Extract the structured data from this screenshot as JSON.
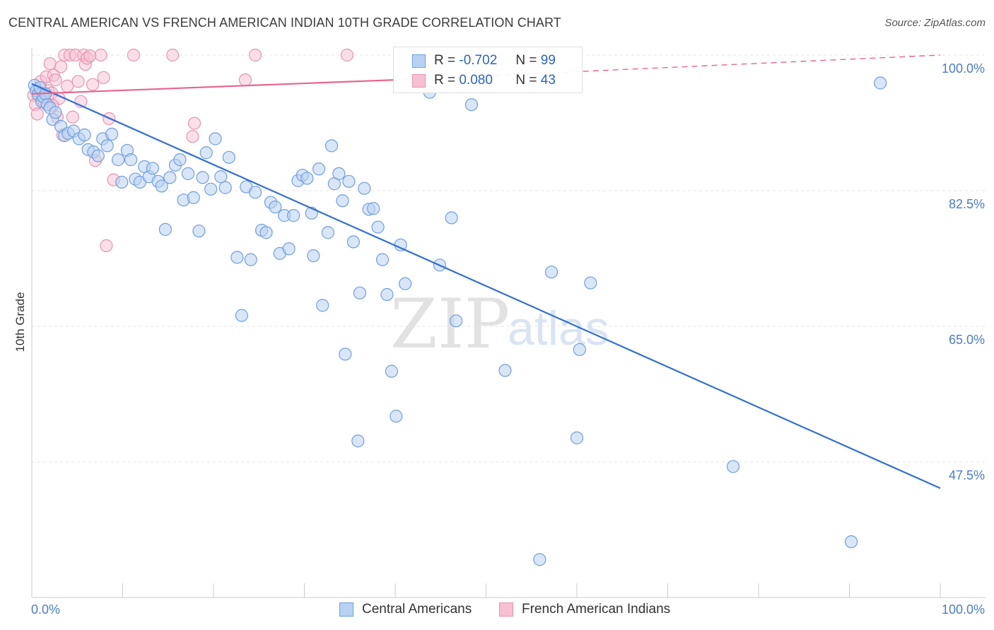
{
  "title": "CENTRAL AMERICAN VS FRENCH AMERICAN INDIAN 10TH GRADE CORRELATION CHART",
  "source": "Source: ZipAtlas.com",
  "watermark": {
    "zip": "ZIP",
    "atlas": "atlas"
  },
  "legend": {
    "rows": [
      {
        "r_label": "R =",
        "r_value": "-0.702",
        "n_label": "N =",
        "n_value": "99"
      },
      {
        "r_label": "R =",
        "r_value": "0.080",
        "n_label": "N =",
        "n_value": "43"
      }
    ]
  },
  "colors": {
    "blue_fill": "#b9d2f3",
    "blue_stroke": "#6f9fe0",
    "blue_line": "#2f6fd6",
    "pink_fill": "#f6c0d2",
    "pink_stroke": "#e893b1",
    "pink_line": "#e5668e",
    "grid": "#e6e6e6",
    "tick_text": "#4a7cc9"
  },
  "chart_data": {
    "type": "scatter",
    "title": "CENTRAL AMERICAN VS FRENCH AMERICAN INDIAN 10TH GRADE CORRELATION CHART",
    "xlabel": "",
    "ylabel": "10th Grade",
    "xlim": [
      0,
      100
    ],
    "ylim": [
      30,
      102
    ],
    "x_tick_labels": [
      "0.0%",
      "100.0%"
    ],
    "y_ticks": [
      47.5,
      65.0,
      82.5,
      100.0
    ],
    "y_tick_labels": [
      "47.5%",
      "65.0%",
      "82.5%",
      "100.0%"
    ],
    "legend_position": "bottom",
    "series": [
      {
        "name": "Central Americans",
        "r": -0.702,
        "n": 99,
        "trend": {
          "x": [
            0,
            100
          ],
          "y": [
            96.3,
            44.1
          ],
          "dashed_beyond": null
        },
        "points": [
          [
            0.3,
            96.1
          ],
          [
            0.5,
            95.4
          ],
          [
            0.7,
            94.9
          ],
          [
            0.9,
            95.8
          ],
          [
            1.1,
            94.0
          ],
          [
            1.3,
            94.6
          ],
          [
            1.5,
            95.0
          ],
          [
            1.7,
            93.6
          ],
          [
            2.0,
            93.2
          ],
          [
            2.3,
            91.7
          ],
          [
            2.6,
            92.6
          ],
          [
            3.2,
            90.8
          ],
          [
            3.6,
            89.6
          ],
          [
            4.0,
            89.9
          ],
          [
            4.6,
            90.2
          ],
          [
            5.2,
            89.2
          ],
          [
            5.8,
            89.7
          ],
          [
            6.2,
            87.8
          ],
          [
            6.8,
            87.5
          ],
          [
            7.3,
            87.0
          ],
          [
            7.8,
            89.2
          ],
          [
            8.3,
            88.3
          ],
          [
            8.8,
            89.8
          ],
          [
            9.5,
            86.5
          ],
          [
            9.9,
            83.6
          ],
          [
            10.5,
            87.7
          ],
          [
            10.9,
            86.5
          ],
          [
            11.4,
            84.0
          ],
          [
            11.9,
            83.6
          ],
          [
            12.4,
            85.6
          ],
          [
            12.9,
            84.3
          ],
          [
            13.3,
            85.4
          ],
          [
            13.9,
            83.7
          ],
          [
            14.3,
            83.1
          ],
          [
            14.7,
            77.5
          ],
          [
            15.2,
            84.2
          ],
          [
            15.8,
            85.8
          ],
          [
            16.3,
            86.5
          ],
          [
            16.7,
            81.3
          ],
          [
            17.2,
            84.7
          ],
          [
            17.8,
            81.6
          ],
          [
            18.4,
            77.3
          ],
          [
            18.8,
            84.2
          ],
          [
            19.2,
            87.4
          ],
          [
            19.7,
            82.7
          ],
          [
            20.2,
            89.2
          ],
          [
            20.8,
            84.3
          ],
          [
            21.3,
            82.9
          ],
          [
            21.7,
            86.8
          ],
          [
            22.6,
            73.9
          ],
          [
            23.1,
            66.4
          ],
          [
            23.6,
            83.0
          ],
          [
            24.1,
            73.6
          ],
          [
            24.6,
            82.3
          ],
          [
            25.3,
            77.4
          ],
          [
            25.8,
            77.1
          ],
          [
            26.3,
            81.0
          ],
          [
            26.8,
            80.4
          ],
          [
            27.3,
            74.4
          ],
          [
            27.8,
            79.3
          ],
          [
            28.3,
            75.0
          ],
          [
            28.8,
            79.3
          ],
          [
            29.3,
            83.8
          ],
          [
            29.8,
            84.5
          ],
          [
            30.3,
            84.1
          ],
          [
            30.8,
            79.6
          ],
          [
            31.0,
            74.1
          ],
          [
            31.6,
            85.3
          ],
          [
            32.0,
            67.7
          ],
          [
            32.6,
            77.1
          ],
          [
            33.0,
            88.3
          ],
          [
            33.3,
            83.4
          ],
          [
            33.8,
            84.7
          ],
          [
            34.2,
            81.2
          ],
          [
            34.5,
            61.4
          ],
          [
            34.9,
            83.7
          ],
          [
            35.4,
            75.9
          ],
          [
            35.9,
            50.2
          ],
          [
            36.1,
            69.3
          ],
          [
            36.6,
            82.8
          ],
          [
            37.1,
            80.1
          ],
          [
            37.6,
            80.2
          ],
          [
            38.1,
            77.8
          ],
          [
            38.6,
            73.6
          ],
          [
            39.1,
            69.1
          ],
          [
            39.6,
            59.2
          ],
          [
            40.1,
            53.4
          ],
          [
            40.6,
            75.5
          ],
          [
            41.1,
            70.5
          ],
          [
            43.8,
            95.2
          ],
          [
            44.9,
            72.9
          ],
          [
            46.2,
            79.0
          ],
          [
            46.7,
            65.7
          ],
          [
            48.4,
            93.6
          ],
          [
            52.1,
            59.3
          ],
          [
            57.2,
            72.0
          ],
          [
            60.0,
            50.6
          ],
          [
            60.3,
            62.0
          ],
          [
            61.5,
            70.6
          ],
          [
            77.2,
            46.9
          ],
          [
            90.2,
            37.2
          ],
          [
            93.4,
            96.4
          ],
          [
            55.9,
            34.9
          ]
        ]
      },
      {
        "name": "French American Indians",
        "r": 0.08,
        "n": 43,
        "trend": {
          "x": [
            0,
            40
          ],
          "y": [
            95.0,
            96.8
          ],
          "dashed_to": [
            100,
            100.0
          ]
        },
        "points": [
          [
            0.2,
            94.8
          ],
          [
            0.4,
            93.6
          ],
          [
            0.6,
            92.4
          ],
          [
            0.8,
            95.2
          ],
          [
            1.0,
            96.6
          ],
          [
            1.2,
            94.2
          ],
          [
            1.4,
            93.9
          ],
          [
            1.6,
            97.2
          ],
          [
            1.8,
            95.4
          ],
          [
            2.0,
            98.9
          ],
          [
            2.2,
            95.1
          ],
          [
            2.4,
            97.4
          ],
          [
            2.6,
            96.8
          ],
          [
            2.8,
            92.0
          ],
          [
            3.0,
            94.4
          ],
          [
            3.2,
            98.5
          ],
          [
            3.4,
            89.7
          ],
          [
            3.6,
            100.0
          ],
          [
            3.9,
            96.0
          ],
          [
            4.2,
            100.0
          ],
          [
            4.5,
            92.0
          ],
          [
            4.8,
            100.0
          ],
          [
            5.1,
            96.6
          ],
          [
            5.4,
            94.0
          ],
          [
            5.7,
            100.0
          ],
          [
            5.9,
            98.8
          ],
          [
            6.1,
            99.6
          ],
          [
            6.4,
            99.9
          ],
          [
            6.7,
            96.2
          ],
          [
            7.0,
            86.4
          ],
          [
            7.6,
            100.0
          ],
          [
            7.9,
            97.1
          ],
          [
            8.2,
            75.4
          ],
          [
            8.5,
            91.8
          ],
          [
            9.0,
            83.9
          ],
          [
            11.2,
            100.0
          ],
          [
            15.5,
            100.0
          ],
          [
            17.7,
            89.5
          ],
          [
            17.9,
            91.2
          ],
          [
            23.5,
            96.8
          ],
          [
            24.6,
            100.0
          ],
          [
            34.7,
            100.0
          ],
          [
            2.3,
            93.5
          ]
        ]
      }
    ]
  }
}
